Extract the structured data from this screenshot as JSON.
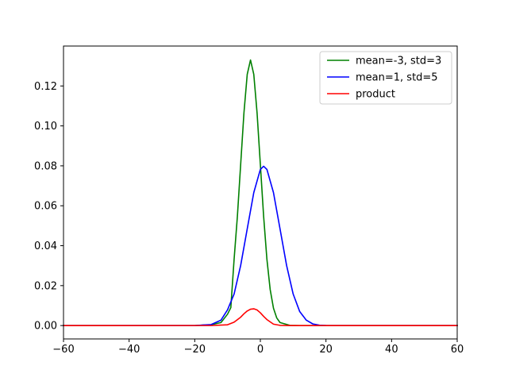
{
  "chart_data": {
    "type": "line",
    "title": "",
    "xlabel": "",
    "ylabel": "",
    "xlim": [
      -60,
      60
    ],
    "ylim": [
      -0.0067,
      0.14
    ],
    "xticks": [
      -60,
      -40,
      -20,
      0,
      20,
      40,
      60
    ],
    "xtick_labels": [
      "−60",
      "−40",
      "−20",
      "0",
      "20",
      "40",
      "60"
    ],
    "yticks": [
      0.0,
      0.02,
      0.04,
      0.06,
      0.08,
      0.1,
      0.12
    ],
    "ytick_labels": [
      "0.00",
      "0.02",
      "0.04",
      "0.06",
      "0.08",
      "0.10",
      "0.12"
    ],
    "grid": false,
    "legend_position": "top-right",
    "series": [
      {
        "name": "mean=-3, std=3",
        "color": "#008000",
        "x": [
          -60,
          -20,
          -15,
          -12,
          -10,
          -9,
          -8,
          -7,
          -6,
          -5,
          -4,
          -3,
          -2,
          -1,
          0,
          1,
          2,
          3,
          4,
          5,
          6,
          9,
          12,
          20,
          60
        ],
        "y": [
          0.0,
          1e-05,
          0.0004,
          0.0015,
          0.0057,
          0.009,
          0.0332,
          0.0547,
          0.0807,
          0.1065,
          0.1258,
          0.133,
          0.1258,
          0.1065,
          0.0807,
          0.0547,
          0.0332,
          0.018,
          0.0087,
          0.0038,
          0.0015,
          0.0001,
          0.0,
          0.0,
          0.0
        ]
      },
      {
        "name": "mean=1, std=5",
        "color": "#0000ff",
        "x": [
          -60,
          -20,
          -15,
          -12,
          -10,
          -8,
          -6,
          -4,
          -2,
          0,
          1,
          2,
          4,
          6,
          8,
          10,
          12,
          14,
          16,
          18,
          20,
          25,
          60
        ],
        "y": [
          0.0,
          1e-05,
          0.0005,
          0.0027,
          0.0079,
          0.0158,
          0.0301,
          0.0484,
          0.0666,
          0.0782,
          0.0798,
          0.0782,
          0.0666,
          0.0484,
          0.0301,
          0.0158,
          0.007,
          0.0027,
          0.0008,
          0.0002,
          5e-05,
          0.0,
          0.0
        ]
      },
      {
        "name": "product",
        "color": "#ff0000",
        "x": [
          -60,
          -15,
          -10,
          -8,
          -6,
          -5,
          -4,
          -3,
          -2,
          -1,
          0,
          1,
          2,
          4,
          6,
          10,
          60
        ],
        "y": [
          0.0,
          1e-05,
          0.0004,
          0.0017,
          0.0042,
          0.0059,
          0.0073,
          0.0082,
          0.0084,
          0.0078,
          0.0064,
          0.0046,
          0.003,
          0.0007,
          0.0001,
          0.0,
          0.0
        ]
      }
    ]
  }
}
